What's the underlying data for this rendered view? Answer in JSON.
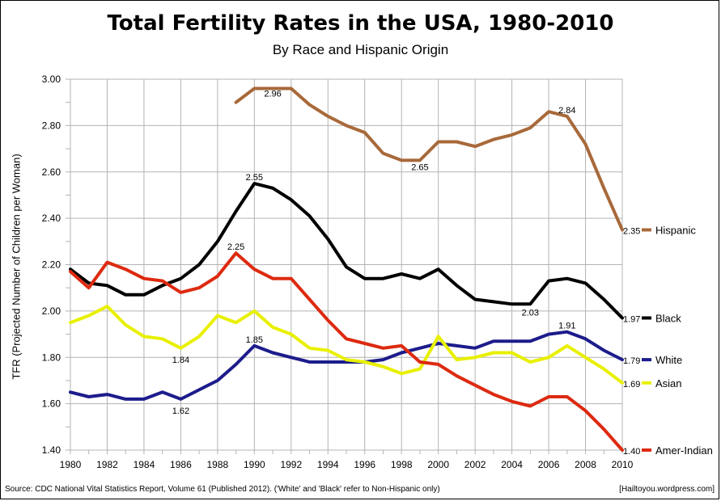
{
  "chart_data": {
    "type": "line",
    "title": "Total Fertility Rates in the USA, 1980-2010",
    "subtitle": "By Race and Hispanic Origin",
    "xlabel": "",
    "ylabel": "TFR (Projected Number of Children per Woman)",
    "xlim": [
      1980,
      2010
    ],
    "ylim": [
      1.4,
      3.0
    ],
    "x_ticks": [
      "1980",
      "1982",
      "1984",
      "1986",
      "1988",
      "1990",
      "1992",
      "1994",
      "1996",
      "1998",
      "2000",
      "2002",
      "2004",
      "2006",
      "2008",
      "2010"
    ],
    "y_ticks": [
      "1.40",
      "1.60",
      "1.80",
      "2.00",
      "2.20",
      "2.40",
      "2.60",
      "2.80",
      "3.00"
    ],
    "grid": true,
    "legend": "right, at line ends",
    "series": [
      {
        "name": "Hispanic",
        "color": "#a8693a",
        "x": [
          1989,
          1990,
          1991,
          1992,
          1993,
          1994,
          1995,
          1996,
          1997,
          1998,
          1999,
          2000,
          2001,
          2002,
          2003,
          2004,
          2005,
          2006,
          2007,
          2008,
          2009,
          2010
        ],
        "y": [
          2.9,
          2.96,
          2.96,
          2.96,
          2.89,
          2.84,
          2.8,
          2.77,
          2.68,
          2.65,
          2.65,
          2.73,
          2.73,
          2.71,
          2.74,
          2.76,
          2.79,
          2.86,
          2.84,
          2.72,
          2.53,
          2.35
        ]
      },
      {
        "name": "Black",
        "color": "#000000",
        "x": [
          1980,
          1981,
          1982,
          1983,
          1984,
          1985,
          1986,
          1987,
          1988,
          1989,
          1990,
          1991,
          1992,
          1993,
          1994,
          1995,
          1996,
          1997,
          1998,
          1999,
          2000,
          2001,
          2002,
          2003,
          2004,
          2005,
          2006,
          2007,
          2008,
          2009,
          2010
        ],
        "y": [
          2.18,
          2.12,
          2.11,
          2.07,
          2.07,
          2.11,
          2.14,
          2.2,
          2.3,
          2.43,
          2.55,
          2.53,
          2.48,
          2.41,
          2.31,
          2.19,
          2.14,
          2.14,
          2.16,
          2.14,
          2.18,
          2.11,
          2.05,
          2.04,
          2.03,
          2.03,
          2.13,
          2.14,
          2.12,
          2.05,
          1.97
        ]
      },
      {
        "name": "White",
        "color": "#1c1c8c",
        "x": [
          1980,
          1981,
          1982,
          1983,
          1984,
          1985,
          1986,
          1987,
          1988,
          1989,
          1990,
          1991,
          1992,
          1993,
          1994,
          1995,
          1996,
          1997,
          1998,
          1999,
          2000,
          2001,
          2002,
          2003,
          2004,
          2005,
          2006,
          2007,
          2008,
          2009,
          2010
        ],
        "y": [
          1.65,
          1.63,
          1.64,
          1.62,
          1.62,
          1.65,
          1.62,
          1.66,
          1.7,
          1.77,
          1.85,
          1.82,
          1.8,
          1.78,
          1.78,
          1.78,
          1.78,
          1.79,
          1.82,
          1.84,
          1.86,
          1.85,
          1.84,
          1.87,
          1.87,
          1.87,
          1.9,
          1.91,
          1.88,
          1.83,
          1.79
        ]
      },
      {
        "name": "Asian",
        "color": "#e8f000",
        "x": [
          1980,
          1981,
          1982,
          1983,
          1984,
          1985,
          1986,
          1987,
          1988,
          1989,
          1990,
          1991,
          1992,
          1993,
          1994,
          1995,
          1996,
          1997,
          1998,
          1999,
          2000,
          2001,
          2002,
          2003,
          2004,
          2005,
          2006,
          2007,
          2008,
          2009,
          2010
        ],
        "y": [
          1.95,
          1.98,
          2.02,
          1.94,
          1.89,
          1.88,
          1.84,
          1.89,
          1.98,
          1.95,
          2.0,
          1.93,
          1.9,
          1.84,
          1.83,
          1.79,
          1.78,
          1.76,
          1.73,
          1.75,
          1.89,
          1.79,
          1.8,
          1.82,
          1.82,
          1.78,
          1.8,
          1.85,
          1.8,
          1.75,
          1.69
        ]
      },
      {
        "name": "Amer-Indian",
        "color": "#dd2a10",
        "x": [
          1980,
          1981,
          1982,
          1983,
          1984,
          1985,
          1986,
          1987,
          1988,
          1989,
          1990,
          1991,
          1992,
          1993,
          1994,
          1995,
          1996,
          1997,
          1998,
          1999,
          2000,
          2001,
          2002,
          2003,
          2004,
          2005,
          2006,
          2007,
          2008,
          2009,
          2010
        ],
        "y": [
          2.17,
          2.1,
          2.21,
          2.18,
          2.14,
          2.13,
          2.08,
          2.1,
          2.15,
          2.25,
          2.18,
          2.14,
          2.14,
          2.05,
          1.96,
          1.88,
          1.86,
          1.84,
          1.85,
          1.78,
          1.77,
          1.72,
          1.68,
          1.64,
          1.61,
          1.59,
          1.63,
          1.63,
          1.57,
          1.49,
          1.4
        ]
      }
    ],
    "annotations": [
      {
        "x": 1991,
        "y": 2.96,
        "text": "2.96"
      },
      {
        "x": 1999,
        "y": 2.65,
        "text": "2.65"
      },
      {
        "x": 2007,
        "y": 2.84,
        "text": "2.84"
      },
      {
        "x": 2010,
        "y": 2.35,
        "text": "2.35"
      },
      {
        "x": 1990,
        "y": 2.55,
        "text": "2.55"
      },
      {
        "x": 2005,
        "y": 2.03,
        "text": "2.03"
      },
      {
        "x": 2010,
        "y": 1.97,
        "text": "1.97"
      },
      {
        "x": 1989,
        "y": 2.25,
        "text": "2.25"
      },
      {
        "x": 2010,
        "y": 1.4,
        "text": "1.40"
      },
      {
        "x": 1986,
        "y": 1.84,
        "text": "1.84"
      },
      {
        "x": 2010,
        "y": 1.69,
        "text": "1.69"
      },
      {
        "x": 1990,
        "y": 1.85,
        "text": "1.85"
      },
      {
        "x": 1986,
        "y": 1.62,
        "text": "1.62"
      },
      {
        "x": 2007,
        "y": 1.91,
        "text": "1.91"
      },
      {
        "x": 2010,
        "y": 1.79,
        "text": "1.79"
      }
    ]
  },
  "footer": {
    "source": "Source: CDC National Vital Statistics Report, Volume 61 (Published 2012). ('White' and 'Black' refer to Non-Hispanic only)",
    "credit": "[Hailtoyou.wordpress.com]"
  }
}
